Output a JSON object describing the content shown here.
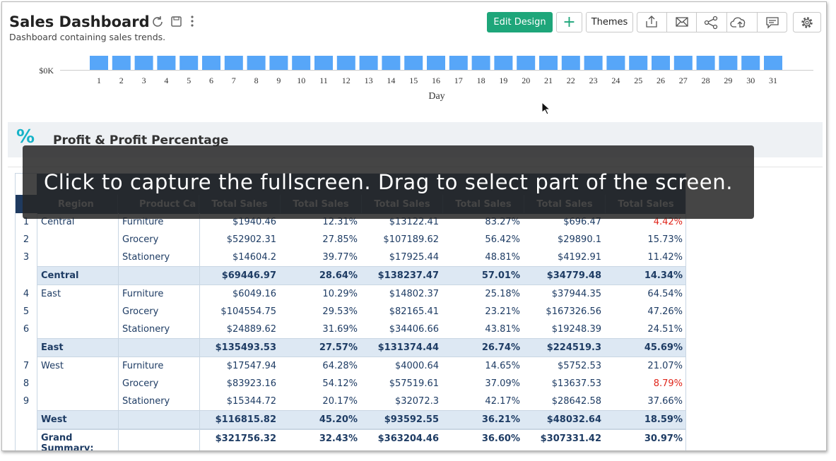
{
  "header": {
    "title": "Sales Dashboard",
    "subtitle": "Dashboard containing sales trends.",
    "buttons": [
      "Edit Design",
      "+",
      "Themes"
    ]
  },
  "chart": {
    "y_tick": "$0K",
    "days": [
      1,
      2,
      3,
      4,
      5,
      6,
      7,
      8,
      9,
      10,
      11,
      12,
      13,
      14,
      15,
      16,
      17,
      18,
      19,
      20,
      21,
      22,
      23,
      24,
      25,
      26,
      27,
      28,
      29,
      30,
      31
    ],
    "x_label": "Day"
  },
  "section": {
    "title": "Profit & Profit Percentage"
  },
  "table": {
    "columns": [
      "Region",
      "Product Ca",
      "Total Sales",
      "Total Sales",
      "Total Sales",
      "Total Sales",
      "Total Sales",
      "Total Sales"
    ],
    "rows": [
      {
        "num": 1,
        "region": "Central",
        "product": "Furniture",
        "cells": [
          "$1940.46",
          "12.31%",
          "$13122.41",
          "83.27%",
          "$696.47",
          {
            "text": "4.42%",
            "color": "#e0261b"
          }
        ]
      },
      {
        "num": 2,
        "product": "Grocery",
        "cells": [
          "$52902.31",
          "27.85%",
          "$107189.62",
          "56.42%",
          "$29890.1",
          "15.73%"
        ]
      },
      {
        "num": 3,
        "product": "Stationery",
        "cells": [
          "$14604.2",
          "39.77%",
          "$17925.44",
          "48.81%",
          "$4192.91",
          "11.42%"
        ]
      },
      {
        "subtotal": true,
        "region": "Central",
        "cells": [
          "$69446.97",
          "28.64%",
          "$138237.47",
          "57.01%",
          "$34779.48",
          "14.34%"
        ]
      },
      {
        "num": 4,
        "region": "East",
        "product": "Furniture",
        "cells": [
          "$6049.16",
          "10.29%",
          "$14802.37",
          "25.18%",
          "$37944.35",
          "64.54%"
        ]
      },
      {
        "num": 5,
        "product": "Grocery",
        "cells": [
          "$104554.75",
          "29.53%",
          "$82165.41",
          "23.21%",
          "$167326.56",
          "47.26%"
        ]
      },
      {
        "num": 6,
        "product": "Stationery",
        "cells": [
          "$24889.62",
          "31.69%",
          "$34406.66",
          "43.81%",
          "$19248.39",
          "24.51%"
        ]
      },
      {
        "subtotal": true,
        "region": "East",
        "cells": [
          "$135493.53",
          "27.57%",
          "$131374.44",
          "26.74%",
          "$224519.3",
          "45.69%"
        ]
      },
      {
        "num": 7,
        "region": "West",
        "product": "Furniture",
        "cells": [
          "$17547.94",
          "64.28%",
          "$4000.64",
          "14.65%",
          "$5752.53",
          "21.07%"
        ]
      },
      {
        "num": 8,
        "product": "Grocery",
        "cells": [
          "$83923.16",
          "54.12%",
          "$57519.61",
          "37.09%",
          "$13637.53",
          {
            "text": "8.79%",
            "color": "#e0261b"
          }
        ]
      },
      {
        "num": 9,
        "product": "Stationery",
        "cells": [
          "$15344.72",
          "20.17%",
          "$32072.3",
          "42.17%",
          "$28642.58",
          "37.66%"
        ]
      },
      {
        "subtotal": true,
        "region": "West",
        "cells": [
          "$116815.82",
          "45.20%",
          "$93592.55",
          "36.21%",
          "$48032.64",
          "18.59%"
        ]
      },
      {
        "subtotal": true,
        "region": "Grand Summary:",
        "cells": [
          "$321756.32",
          "32.43%",
          "$363204.46",
          "36.60%",
          "$307331.42",
          "30.97%"
        ]
      }
    ]
  },
  "overlay": {
    "message": "Click to capture the fullscreen. Drag to select part of the screen."
  }
}
